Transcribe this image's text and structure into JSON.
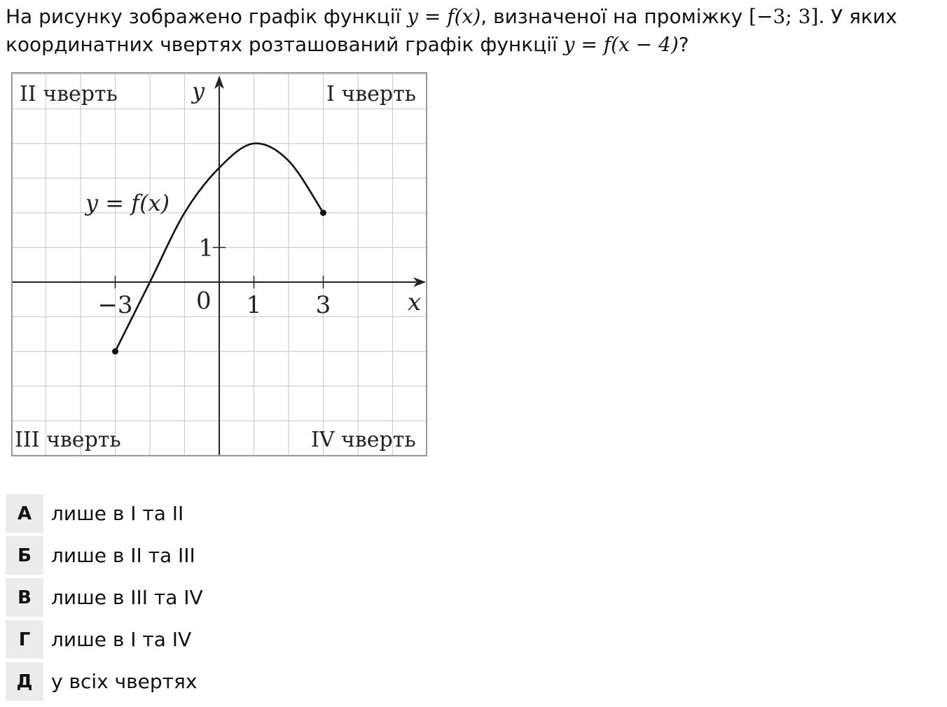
{
  "question": {
    "part1": "На рисунку зображено графік функції ",
    "formula1": "y = f(x)",
    "part2": ", визначеної на проміжку ",
    "interval": "[−3;  3]",
    "part3": ". У яких координатних чвертях розташований графік функції ",
    "formula2": "y = f(x − 4)",
    "part4": "?"
  },
  "figure": {
    "quadrant_labels": {
      "q1": "I чверть",
      "q2": "II чверть",
      "q3": "III чверть",
      "q4": "IV чверть"
    },
    "axis_x_label": "x",
    "axis_y_label": "y",
    "origin_label": "0",
    "x_tick_labels": [
      {
        "value": -3,
        "text": "−3"
      },
      {
        "value": 1,
        "text": "1"
      },
      {
        "value": 3,
        "text": "3"
      }
    ],
    "y_tick_labels": [
      {
        "value": 1,
        "text": "1"
      }
    ],
    "curve_label": "y = f(x)",
    "grid": {
      "x_range": [
        -6,
        6
      ],
      "y_range": [
        -5,
        6
      ]
    },
    "curve_points": [
      [
        -3,
        -2
      ],
      [
        -2,
        0
      ],
      [
        -1,
        2
      ],
      [
        0,
        3.3
      ],
      [
        1,
        4
      ],
      [
        2,
        3.5
      ],
      [
        3,
        2
      ]
    ],
    "endpoints": [
      [
        -3,
        -2
      ],
      [
        3,
        2
      ]
    ]
  },
  "answers": [
    {
      "letter": "А",
      "text": "лише в І та ІІ"
    },
    {
      "letter": "Б",
      "text": "лише в ІІ та ІІІ"
    },
    {
      "letter": "В",
      "text": "лише в ІІІ та ІV"
    },
    {
      "letter": "Г",
      "text": "лише в І та ІV"
    },
    {
      "letter": "Д",
      "text": "у всіх чвертях"
    }
  ]
}
